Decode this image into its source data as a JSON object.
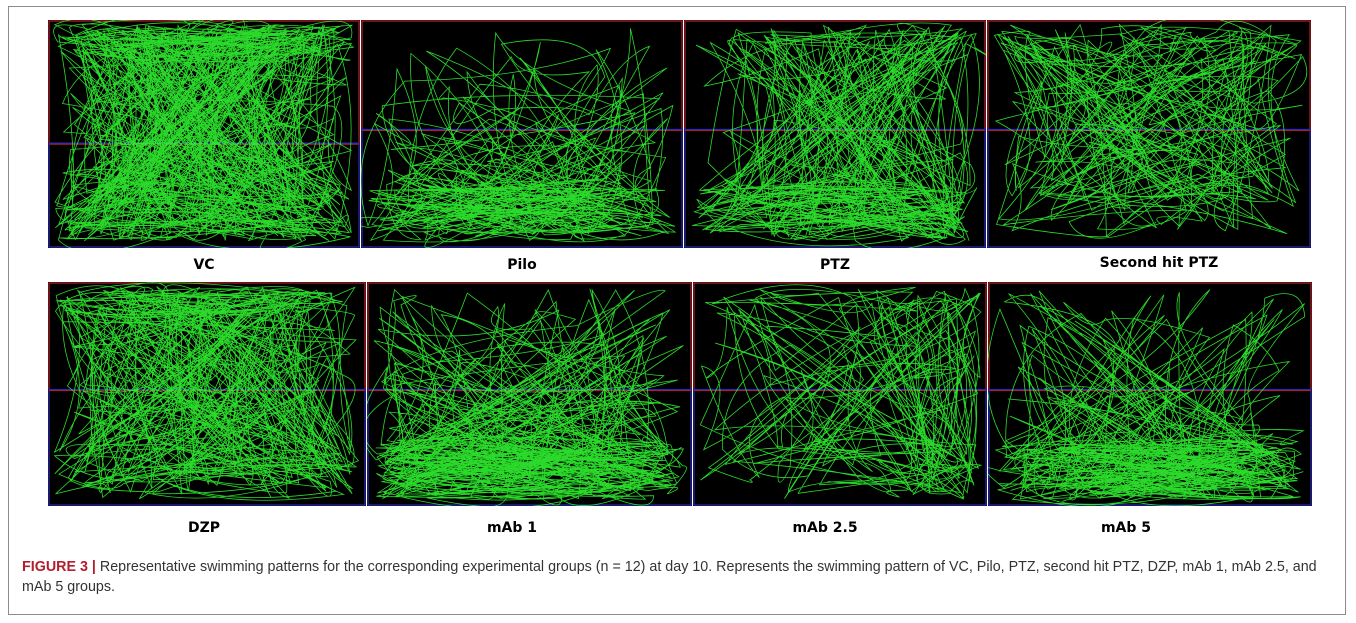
{
  "figure": {
    "caption_label": "FIGURE 3 |",
    "caption_text": " Representative swimming patterns for the corresponding experimental groups (n = 12) at day 10. Represents the swimming pattern of VC, Pilo, PTZ, second hit PTZ, DZP, mAb 1, mAb 2.5, and mAb 5 groups."
  },
  "panels": [
    {
      "label": "VC"
    },
    {
      "label": "Pilo"
    },
    {
      "label": "PTZ"
    },
    {
      "label": "Second hit PTZ"
    },
    {
      "label": "DZP"
    },
    {
      "label": "mAb 1"
    },
    {
      "label": "mAb 2.5"
    },
    {
      "label": "mAb 5"
    }
  ],
  "colors": {
    "track": "#33ff33",
    "background": "#000000",
    "upper_zone_border": "#b0202a",
    "lower_zone_border": "#2a2ab8",
    "caption_label": "#b11e2e"
  }
}
